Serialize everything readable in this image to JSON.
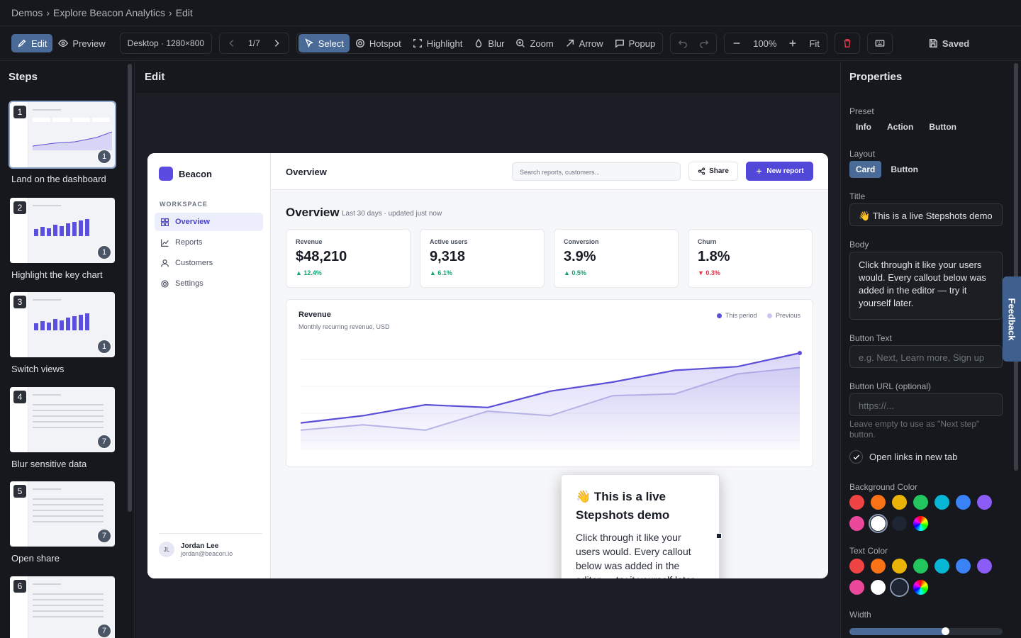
{
  "breadcrumb": [
    "Demos",
    "Explore Beacon Analytics",
    "Edit"
  ],
  "toolbar": {
    "edit": "Edit",
    "preview": "Preview",
    "device": "Desktop · 1280×800",
    "pager": "1/7",
    "tools": [
      "Select",
      "Hotspot",
      "Highlight",
      "Blur",
      "Zoom",
      "Arrow",
      "Popup"
    ],
    "zoom": "100%",
    "fit": "Fit",
    "saved": "Saved"
  },
  "steps": {
    "title": "Steps",
    "items": [
      {
        "num": "1",
        "count": "1",
        "label": "Land on the dashboard"
      },
      {
        "num": "2",
        "count": "1",
        "label": "Highlight the key chart"
      },
      {
        "num": "3",
        "count": "1",
        "label": "Switch views"
      },
      {
        "num": "4",
        "count": "7",
        "label": "Blur sensitive data"
      },
      {
        "num": "5",
        "count": "7",
        "label": "Open share"
      },
      {
        "num": "6",
        "count": "7",
        "label": ""
      }
    ]
  },
  "editor": {
    "title": "Edit"
  },
  "app": {
    "brand": "Beacon",
    "workspace_label": "WORKSPACE",
    "nav": [
      "Overview",
      "Reports",
      "Customers",
      "Settings"
    ],
    "user_initials": "JL",
    "user_name": "Jordan Lee",
    "user_email": "jordan@beacon.io",
    "header_title": "Overview",
    "search_placeholder": "Search reports, customers...",
    "share": "Share",
    "new_report": "New report",
    "page_title": "Overview",
    "page_subtitle": "Last 30 days · updated just now",
    "kpis": [
      {
        "label": "Revenue",
        "value": "$48,210",
        "delta": "▲ 12.4%"
      },
      {
        "label": "Active users",
        "value": "9,318",
        "delta": "▲ 6.1%"
      },
      {
        "label": "Conversion",
        "value": "3.9%",
        "delta": "▲ 0.5%"
      },
      {
        "label": "Churn",
        "value": "1.8%",
        "delta": "▼ 0.3%"
      }
    ],
    "chart_title": "Revenue",
    "chart_subtitle": "Monthly recurring revenue, USD",
    "legend_current": "This period",
    "legend_previous": "Previous"
  },
  "chart_data": {
    "type": "area",
    "title": "Revenue",
    "subtitle": "Monthly recurring revenue, USD",
    "xlim": [
      0,
      8
    ],
    "ylim": [
      0,
      100
    ],
    "series": [
      {
        "name": "This period",
        "color": "#5b4fd8",
        "x": [
          0,
          1,
          2,
          3,
          4,
          5,
          6,
          7,
          8
        ],
        "values": [
          30,
          38,
          50,
          47,
          65,
          75,
          88,
          92,
          107
        ]
      },
      {
        "name": "Previous",
        "color": "#bdbbe6",
        "x": [
          0,
          1,
          2,
          3,
          4,
          5,
          6,
          7,
          8
        ],
        "values": [
          22,
          28,
          22,
          43,
          38,
          60,
          62,
          84,
          91
        ]
      }
    ]
  },
  "callout": {
    "title": "👋 This is a live Stepshots demo",
    "body": "Click through it like your users would. Every callout below was added in the editor — try it yourself later."
  },
  "properties": {
    "title": "Properties",
    "preset_label": "Preset",
    "presets": [
      "Info",
      "Action",
      "Button"
    ],
    "layout_label": "Layout",
    "layouts": [
      "Card",
      "Button"
    ],
    "title_label": "Title",
    "title_value": "👋 This is a live Stepshots demo",
    "body_label": "Body",
    "body_value": "Click through it like your users would. Every callout below was added in the editor — try it yourself later.",
    "button_text_label": "Button Text",
    "button_text_placeholder": "e.g. Next, Learn more, Sign up",
    "button_url_label": "Button URL (optional)",
    "button_url_placeholder": "https://...",
    "button_url_hint": "Leave empty to use as \"Next step\" button.",
    "open_new_tab": "Open links in new tab",
    "bg_color_label": "Background Color",
    "text_color_label": "Text Color",
    "width_label": "Width",
    "width_value": 0.64,
    "swatches": [
      "#ef4444",
      "#f97316",
      "#eab308",
      "#22c55e",
      "#06b6d4",
      "#3b82f6",
      "#8b5cf6",
      "#ec4899",
      "#ffffff",
      "#1e2533"
    ]
  },
  "feedback": "Feedback"
}
